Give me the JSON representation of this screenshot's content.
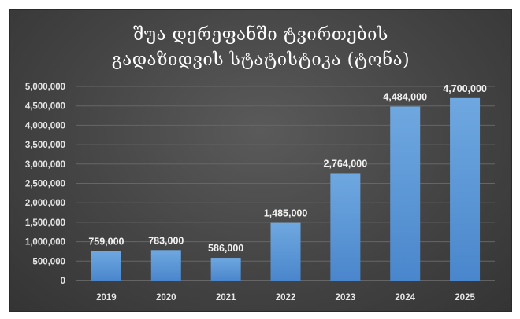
{
  "chart_data": {
    "type": "bar",
    "title_lines": [
      "შუა დერეფანში ტვირთების",
      "გადაზიდვის სტატისტიკა (ტონა)"
    ],
    "categories": [
      "2019",
      "2020",
      "2021",
      "2022",
      "2023",
      "2024",
      "2025"
    ],
    "values": [
      759000,
      783000,
      586000,
      1485000,
      2764000,
      4484000,
      4700000
    ],
    "data_labels": [
      "759,000",
      "783,000",
      "586,000",
      "1,485,000",
      "2,764,000",
      "4,484,000",
      "4,700,000"
    ],
    "yticks": [
      "0",
      "500,000",
      "1,000,000",
      "1,500,000",
      "2,000,000",
      "2,500,000",
      "3,000,000",
      "3,500,000",
      "4,000,000",
      "4,500,000",
      "5,000,000"
    ],
    "ylim": [
      0,
      5000000
    ],
    "ystep": 500000,
    "grid": true,
    "legend": "none",
    "colors": {
      "bar_top": "#6fa8e0",
      "bar_bottom": "#4a86cc",
      "grid": "#666666",
      "background": "#444444"
    }
  }
}
